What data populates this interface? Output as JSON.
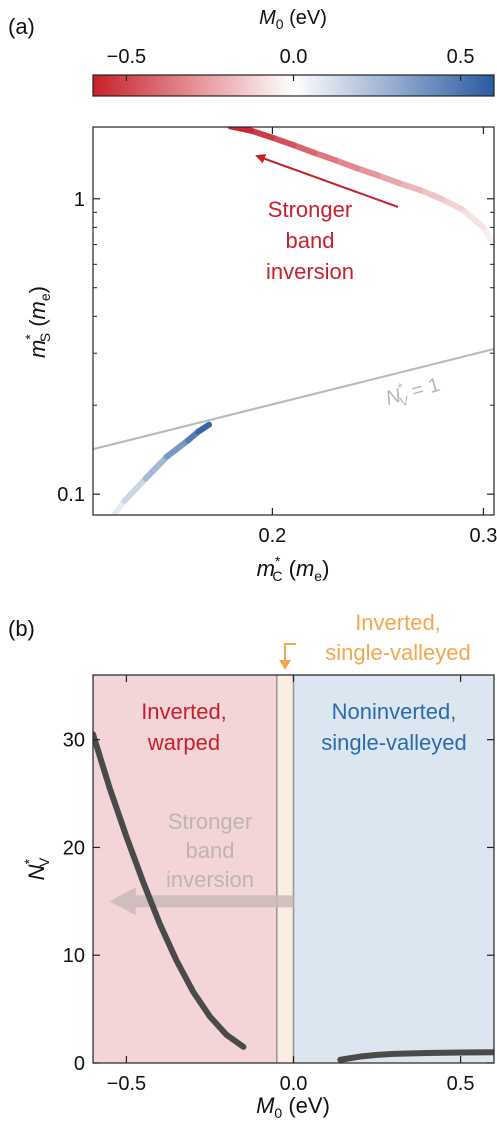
{
  "panel_a_label": "(a)",
  "panel_b_label": "(b)",
  "colorbar": {
    "label_italic": "M",
    "label_sub": "0",
    "label_unit": " (eV)",
    "range": [
      -0.6,
      0.6
    ],
    "ticks": [
      -0.5,
      0.0,
      0.5
    ],
    "tick_labels": [
      "−0.5",
      "0.0",
      "0.5"
    ],
    "colors": {
      "negative": "#c8202c",
      "zero": "#ffffff",
      "positive": "#2b5aa0"
    }
  },
  "chart_data": [
    {
      "type": "line",
      "panel": "a",
      "xlabel": {
        "italic": "m",
        "sup": "*",
        "sub": "C",
        "unit": " (",
        "unit_italic": "m",
        "unit_sub": "e",
        "close": ")"
      },
      "ylabel": {
        "italic": "m",
        "sup": "*",
        "sub": "S",
        "unit": " (",
        "unit_italic": "m",
        "unit_sub": "e",
        "close": ")"
      },
      "xlim": [
        0.115,
        0.305
      ],
      "ylim": [
        0.085,
        1.75
      ],
      "yscale": "log",
      "x_ticks": [
        0.2,
        0.3
      ],
      "x_tick_labels": [
        "0.2",
        "0.3"
      ],
      "y_ticks": [
        0.1,
        1
      ],
      "y_tick_labels": [
        "0.1",
        "1"
      ],
      "series": [
        {
          "color_by": "M0",
          "x": [
            0.305,
            0.3,
            0.29,
            0.28,
            0.27,
            0.26,
            0.25,
            0.24,
            0.23,
            0.22,
            0.21,
            0.2,
            0.19,
            0.18
          ],
          "y": [
            0.7,
            0.8,
            0.92,
            1.0,
            1.07,
            1.13,
            1.2,
            1.27,
            1.35,
            1.43,
            1.52,
            1.61,
            1.7,
            1.76
          ],
          "M0": [
            -0.03,
            -0.06,
            -0.1,
            -0.14,
            -0.18,
            -0.22,
            -0.26,
            -0.3,
            -0.34,
            -0.39,
            -0.44,
            -0.5,
            -0.56,
            -0.6
          ]
        },
        {
          "color_by": "M0",
          "x": [
            0.125,
            0.13,
            0.14,
            0.15,
            0.16,
            0.165,
            0.17
          ],
          "y": [
            0.085,
            0.095,
            0.113,
            0.134,
            0.152,
            0.163,
            0.172
          ],
          "M0": [
            0.04,
            0.1,
            0.2,
            0.32,
            0.44,
            0.52,
            0.6
          ]
        },
        {
          "name_italic": "N",
          "name_sup": "*",
          "name_sub": "V",
          "name_rest": " = 1",
          "color": "#b9b9b9",
          "x": [
            0.115,
            0.305
          ],
          "y": [
            0.142,
            0.31
          ]
        }
      ],
      "annotations": [
        {
          "lines": [
            "Stronger",
            "band",
            "inversion"
          ],
          "color": "#c8202c"
        }
      ]
    },
    {
      "type": "line",
      "panel": "b",
      "xlabel": {
        "italic": "M",
        "sub": "0",
        "unit": " (eV)"
      },
      "ylabel": {
        "italic": "N",
        "sup": "*",
        "sub": "V"
      },
      "xlim": [
        -0.6,
        0.6
      ],
      "ylim": [
        0,
        36
      ],
      "x_ticks": [
        -0.5,
        0.0,
        0.5
      ],
      "x_tick_labels": [
        "−0.5",
        "0.0",
        "0.5"
      ],
      "y_ticks": [
        0,
        10,
        20,
        30
      ],
      "y_tick_labels": [
        "0",
        "10",
        "20",
        "30"
      ],
      "regions": [
        {
          "x": [
            -0.6,
            -0.05
          ],
          "color": "#f3d4d7",
          "label_lines": [
            "Inverted,",
            "warped"
          ],
          "label_color": "#c8202c"
        },
        {
          "x": [
            -0.05,
            0.0
          ],
          "color": "#fbeee0",
          "label_lines": [
            "Inverted,",
            "single-valleyed"
          ],
          "label_color": "#f4a64f"
        },
        {
          "x": [
            0.0,
            0.6
          ],
          "color": "#dbe6f1",
          "label_lines": [
            "Noninverted,",
            "single-valleyed"
          ],
          "label_color": "#2a6aad"
        }
      ],
      "series": [
        {
          "color": "#4a4a4a",
          "x": [
            -0.6,
            -0.55,
            -0.5,
            -0.45,
            -0.4,
            -0.35,
            -0.3,
            -0.25,
            -0.2,
            -0.15
          ],
          "y": [
            30.5,
            25.5,
            21.0,
            16.8,
            12.9,
            9.5,
            6.6,
            4.3,
            2.6,
            1.5
          ]
        },
        {
          "color": "#4a4a4a",
          "x": [
            0.14,
            0.2,
            0.25,
            0.3,
            0.4,
            0.5,
            0.6
          ],
          "y": [
            0.3,
            0.6,
            0.75,
            0.85,
            0.93,
            0.97,
            1.0
          ]
        }
      ],
      "annotations": [
        {
          "lines": [
            "Stronger",
            "band",
            "inversion"
          ],
          "color": "#bdb4b4",
          "arrow_from_x": 0.0,
          "arrow_to_x": -0.55,
          "arrow_y": 15
        }
      ]
    }
  ]
}
